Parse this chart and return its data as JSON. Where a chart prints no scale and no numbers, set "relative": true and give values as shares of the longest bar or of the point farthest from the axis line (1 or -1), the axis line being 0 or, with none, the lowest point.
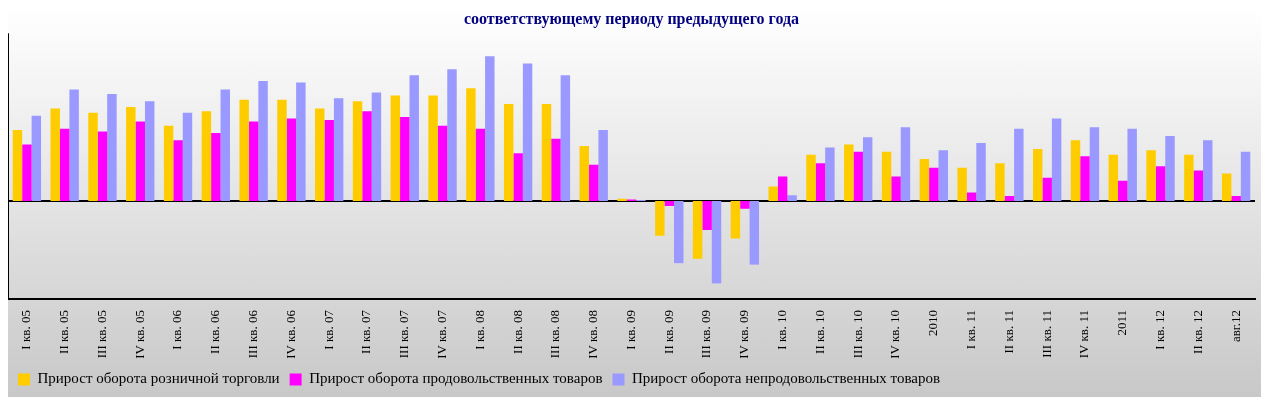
{
  "chart_data": {
    "type": "bar",
    "title": "соответствующему периоду предыдущего года",
    "relative": true,
    "legend": "bottom left",
    "categories": [
      "I кв. 05",
      "II кв. 05",
      "III кв. 05",
      "IV кв. 05",
      "I кв. 06",
      "II кв. 06",
      "III кв. 06",
      "IV кв. 06",
      "I кв. 07",
      "II кв. 07",
      "III кв. 07",
      "IV кв. 07",
      "I кв. 08",
      "II кв. 08",
      "III кв. 08",
      "IV кв. 08",
      "I кв. 09",
      "II кв. 09",
      "III кв. 09",
      "IV кв. 09",
      "I кв. 10",
      "II кв. 10",
      "III кв. 10",
      "IV кв. 10",
      "2010",
      "I кв. 11",
      "II кв. 11",
      "III кв. 11",
      "IV кв. 11",
      "2011",
      "I кв. 12",
      "II кв. 12",
      "авг.12"
    ],
    "series": [
      {
        "name": "Прирост оборота розничной торговли",
        "color": "#ffcc00",
        "values": [
          0.49,
          0.64,
          0.61,
          0.65,
          0.52,
          0.62,
          0.7,
          0.7,
          0.64,
          0.69,
          0.73,
          0.73,
          0.78,
          0.67,
          0.67,
          0.38,
          0.015,
          -0.24,
          -0.4,
          -0.26,
          0.1,
          0.32,
          0.39,
          0.34,
          0.29,
          0.23,
          0.26,
          0.36,
          0.42,
          0.32,
          0.35,
          0.32,
          0.19
        ]
      },
      {
        "name": "Прирост оборота продовольственных товаров",
        "color": "#ff00ff",
        "values": [
          0.39,
          0.5,
          0.48,
          0.55,
          0.42,
          0.47,
          0.55,
          0.57,
          0.56,
          0.62,
          0.58,
          0.52,
          0.5,
          0.33,
          0.43,
          0.25,
          0.01,
          -0.035,
          -0.2,
          -0.054,
          0.17,
          0.26,
          0.34,
          0.17,
          0.23,
          0.058,
          0.035,
          0.16,
          0.31,
          0.14,
          0.24,
          0.21,
          0.035
        ]
      },
      {
        "name": "Прирост оборота непродовольственных товаров",
        "color": "#9999ff",
        "values": [
          0.59,
          0.77,
          0.74,
          0.69,
          0.61,
          0.77,
          0.83,
          0.82,
          0.71,
          0.75,
          0.87,
          0.91,
          1,
          0.95,
          0.87,
          0.49,
          0.006,
          -0.43,
          -0.57,
          -0.44,
          0.04,
          0.37,
          0.44,
          0.51,
          0.35,
          0.4,
          0.5,
          0.57,
          0.51,
          0.5,
          0.45,
          0.42,
          0.34
        ]
      }
    ]
  }
}
